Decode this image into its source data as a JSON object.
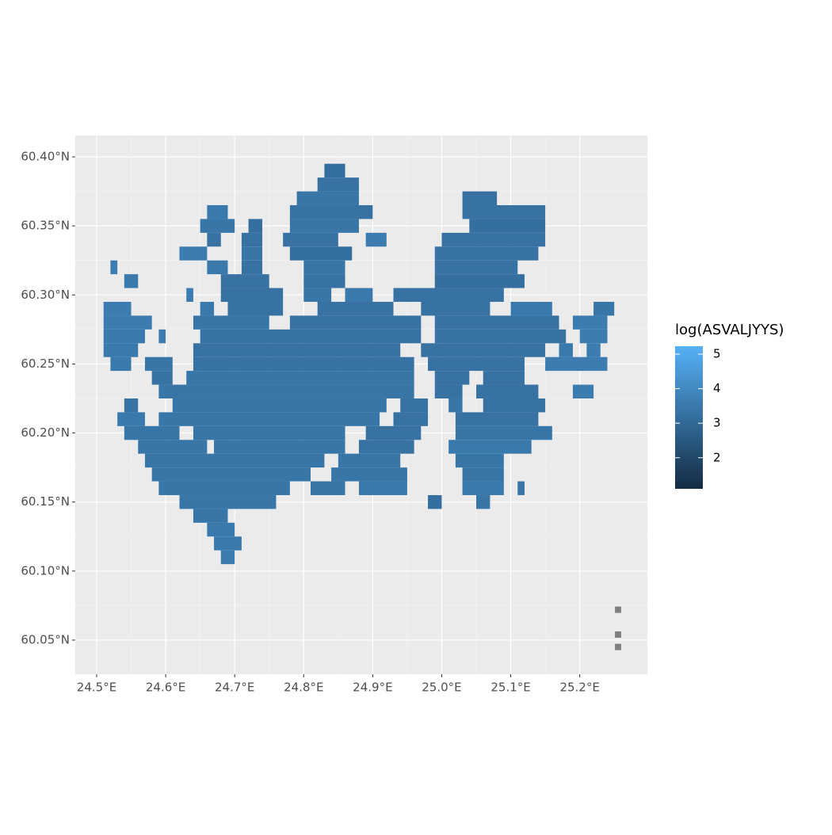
{
  "chart_data": {
    "type": "raster",
    "xlim": [
      24.469,
      25.298
    ],
    "ylim": [
      60.0253,
      60.4155
    ],
    "xticks": [
      {
        "value": 24.5,
        "label": "24.5°E"
      },
      {
        "value": 24.6,
        "label": "24.6°E"
      },
      {
        "value": 24.7,
        "label": "24.7°E"
      },
      {
        "value": 24.8,
        "label": "24.8°E"
      },
      {
        "value": 24.9,
        "label": "24.9°E"
      },
      {
        "value": 25.0,
        "label": "25.0°E"
      },
      {
        "value": 25.1,
        "label": "25.1°E"
      },
      {
        "value": 25.2,
        "label": "25.2°E"
      }
    ],
    "yticks": [
      {
        "value": 60.05,
        "label": "60.05°N"
      },
      {
        "value": 60.1,
        "label": "60.10°N"
      },
      {
        "value": 60.15,
        "label": "60.15°N"
      },
      {
        "value": 60.2,
        "label": "60.20°N"
      },
      {
        "value": 60.25,
        "label": "60.25°N"
      },
      {
        "value": 60.3,
        "label": "60.30°N"
      },
      {
        "value": 60.35,
        "label": "60.35°N"
      },
      {
        "value": 60.4,
        "label": "60.40°N"
      }
    ],
    "grid": true,
    "legend": {
      "title": "log(ASVALJYYS)",
      "limits": [
        1.1,
        5.23
      ],
      "ticks": [
        2,
        3,
        4,
        5
      ],
      "low_color": "#132B43",
      "high_color": "#56B1F7",
      "na_color": "#7f7f7f"
    },
    "rows": [
      {
        "lat": 60.39,
        "runs": [
          [
            24.83,
            24.86,
            3.2
          ]
        ]
      },
      {
        "lat": 60.38,
        "runs": [
          [
            24.82,
            24.88,
            3.3
          ]
        ]
      },
      {
        "lat": 60.37,
        "runs": [
          [
            24.79,
            24.88,
            3.4
          ],
          [
            25.03,
            25.08,
            3.3
          ]
        ]
      },
      {
        "lat": 60.36,
        "runs": [
          [
            24.66,
            24.69,
            3.5
          ],
          [
            24.78,
            24.9,
            3.3
          ],
          [
            25.03,
            25.15,
            3.3
          ]
        ]
      },
      {
        "lat": 60.35,
        "runs": [
          [
            24.65,
            24.7,
            3.4
          ],
          [
            24.72,
            24.74,
            3.2
          ],
          [
            24.78,
            24.88,
            3.4
          ],
          [
            25.04,
            25.15,
            3.2
          ]
        ]
      },
      {
        "lat": 60.34,
        "runs": [
          [
            24.66,
            24.68,
            3.3
          ],
          [
            24.71,
            24.74,
            3.3
          ],
          [
            24.77,
            24.85,
            3.3
          ],
          [
            24.89,
            24.92,
            3.6
          ],
          [
            25.0,
            25.15,
            3.3
          ]
        ]
      },
      {
        "lat": 60.33,
        "runs": [
          [
            24.62,
            24.66,
            3.6
          ],
          [
            24.71,
            24.74,
            3.4
          ],
          [
            24.78,
            24.87,
            3.2
          ],
          [
            24.99,
            25.14,
            3.3
          ]
        ]
      },
      {
        "lat": 60.32,
        "runs": [
          [
            24.52,
            24.53,
            3.6
          ],
          [
            24.66,
            24.69,
            3.5
          ],
          [
            24.71,
            24.74,
            3.3
          ],
          [
            24.8,
            24.86,
            3.4
          ],
          [
            24.99,
            25.11,
            3.3
          ]
        ]
      },
      {
        "lat": 60.31,
        "runs": [
          [
            24.54,
            24.56,
            3.5
          ],
          [
            24.68,
            24.75,
            3.3
          ],
          [
            24.8,
            24.86,
            3.3
          ],
          [
            24.99,
            25.12,
            3.2
          ]
        ]
      },
      {
        "lat": 60.3,
        "runs": [
          [
            24.63,
            24.64,
            3.6
          ],
          [
            24.68,
            24.77,
            3.3
          ],
          [
            24.8,
            24.84,
            3.4
          ],
          [
            24.86,
            24.9,
            3.5
          ],
          [
            24.93,
            25.09,
            3.3
          ]
        ]
      },
      {
        "lat": 60.29,
        "runs": [
          [
            24.51,
            24.55,
            3.6
          ],
          [
            24.65,
            24.67,
            3.5
          ],
          [
            24.69,
            24.77,
            3.3
          ],
          [
            24.82,
            24.93,
            3.3
          ],
          [
            24.97,
            25.07,
            3.3
          ],
          [
            25.1,
            25.16,
            3.5
          ],
          [
            25.22,
            25.25,
            3.4
          ]
        ]
      },
      {
        "lat": 60.28,
        "runs": [
          [
            24.51,
            24.58,
            3.6
          ],
          [
            24.64,
            24.75,
            3.4
          ],
          [
            24.78,
            24.97,
            3.3
          ],
          [
            24.99,
            25.17,
            3.3
          ],
          [
            25.19,
            25.24,
            3.6
          ]
        ]
      },
      {
        "lat": 60.27,
        "runs": [
          [
            24.51,
            24.57,
            3.5
          ],
          [
            24.59,
            24.6,
            3.6
          ],
          [
            24.65,
            24.97,
            3.3
          ],
          [
            24.99,
            25.18,
            3.3
          ],
          [
            25.2,
            25.24,
            3.6
          ]
        ]
      },
      {
        "lat": 60.26,
        "runs": [
          [
            24.51,
            24.56,
            3.5
          ],
          [
            24.64,
            24.94,
            3.3
          ],
          [
            24.97,
            25.15,
            3.3
          ],
          [
            25.17,
            25.19,
            3.5
          ],
          [
            25.21,
            25.23,
            3.6
          ]
        ]
      },
      {
        "lat": 60.25,
        "runs": [
          [
            24.52,
            24.55,
            3.5
          ],
          [
            24.57,
            24.61,
            3.4
          ],
          [
            24.64,
            24.96,
            3.3
          ],
          [
            24.98,
            25.12,
            3.3
          ],
          [
            25.15,
            25.24,
            3.6
          ]
        ]
      },
      {
        "lat": 60.24,
        "runs": [
          [
            24.58,
            24.61,
            3.3
          ],
          [
            24.63,
            24.96,
            3.4
          ],
          [
            24.99,
            25.04,
            3.3
          ],
          [
            25.06,
            25.12,
            3.3
          ]
        ]
      },
      {
        "lat": 60.23,
        "runs": [
          [
            24.59,
            24.96,
            3.4
          ],
          [
            24.99,
            25.03,
            3.3
          ],
          [
            25.05,
            25.14,
            3.3
          ],
          [
            25.19,
            25.22,
            3.6
          ]
        ]
      },
      {
        "lat": 60.22,
        "runs": [
          [
            24.54,
            24.56,
            3.3
          ],
          [
            24.61,
            24.92,
            3.4
          ],
          [
            24.94,
            24.98,
            3.3
          ],
          [
            25.01,
            25.03,
            3.4
          ],
          [
            25.06,
            25.15,
            3.3
          ]
        ]
      },
      {
        "lat": 60.21,
        "runs": [
          [
            24.53,
            24.57,
            3.5
          ],
          [
            24.59,
            24.91,
            3.4
          ],
          [
            24.93,
            24.98,
            3.3
          ],
          [
            25.02,
            25.14,
            3.3
          ]
        ]
      },
      {
        "lat": 60.2,
        "runs": [
          [
            24.54,
            24.62,
            3.4
          ],
          [
            24.64,
            24.86,
            3.4
          ],
          [
            24.89,
            24.97,
            3.3
          ],
          [
            25.02,
            25.16,
            3.4
          ]
        ]
      },
      {
        "lat": 60.19,
        "runs": [
          [
            24.56,
            24.66,
            3.4
          ],
          [
            24.67,
            24.86,
            3.4
          ],
          [
            24.88,
            24.96,
            3.3
          ],
          [
            25.01,
            25.13,
            3.5
          ]
        ]
      },
      {
        "lat": 60.18,
        "runs": [
          [
            24.57,
            24.83,
            3.4
          ],
          [
            24.85,
            24.94,
            3.4
          ],
          [
            25.02,
            25.09,
            3.4
          ]
        ]
      },
      {
        "lat": 60.17,
        "runs": [
          [
            24.58,
            24.81,
            3.4
          ],
          [
            24.84,
            24.95,
            3.4
          ],
          [
            25.03,
            25.09,
            3.4
          ]
        ]
      },
      {
        "lat": 60.16,
        "runs": [
          [
            24.59,
            24.78,
            3.4
          ],
          [
            24.81,
            24.86,
            3.4
          ],
          [
            24.88,
            24.95,
            3.5
          ],
          [
            25.03,
            25.09,
            3.5
          ],
          [
            25.11,
            25.12,
            3.4
          ]
        ]
      },
      {
        "lat": 60.15,
        "runs": [
          [
            24.62,
            24.76,
            3.4
          ],
          [
            24.98,
            25.0,
            3.2
          ],
          [
            25.05,
            25.07,
            3.4
          ]
        ]
      },
      {
        "lat": 60.14,
        "runs": [
          [
            24.64,
            24.69,
            3.4
          ]
        ]
      },
      {
        "lat": 60.13,
        "runs": [
          [
            24.66,
            24.7,
            3.5
          ]
        ]
      },
      {
        "lat": 60.12,
        "runs": [
          [
            24.67,
            24.71,
            3.5
          ]
        ]
      },
      {
        "lat": 60.11,
        "runs": [
          [
            24.68,
            24.7,
            3.6
          ]
        ]
      },
      {
        "lat": 60.072,
        "runs": [
          [
            25.251,
            25.26,
            null
          ]
        ]
      },
      {
        "lat": 60.054,
        "runs": [
          [
            25.251,
            25.26,
            null
          ]
        ]
      },
      {
        "lat": 60.045,
        "runs": [
          [
            25.251,
            25.26,
            null
          ]
        ]
      }
    ]
  }
}
